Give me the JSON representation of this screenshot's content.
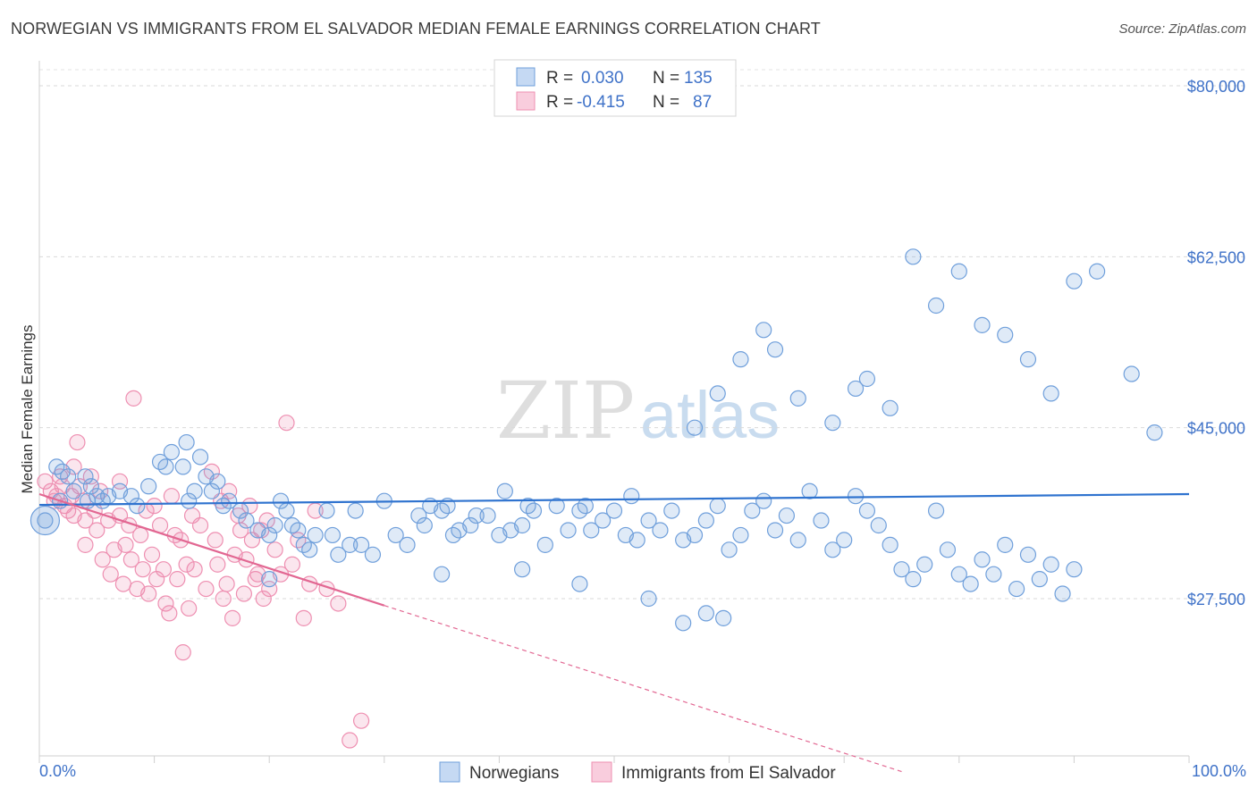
{
  "title": "NORWEGIAN VS IMMIGRANTS FROM EL SALVADOR MEDIAN FEMALE EARNINGS CORRELATION CHART",
  "source": "Source: ZipAtlas.com",
  "watermark": {
    "part1": "ZIP",
    "part2": "atlas"
  },
  "colors": {
    "blue": "#6f9fdb",
    "blue_line": "#2f73cf",
    "pink": "#ee8fb1",
    "pink_line": "#e26792",
    "tick_text": "#3f72c8"
  },
  "legend": {
    "r_label": "R =",
    "n_label": "N =",
    "rows": [
      {
        "r": "0.030",
        "n": "135"
      },
      {
        "r": "-0.415",
        "n": "87"
      }
    ]
  },
  "chart_data": {
    "type": "scatter",
    "title": "NORWEGIAN VS IMMIGRANTS FROM EL SALVADOR MEDIAN FEMALE EARNINGS CORRELATION CHART",
    "xlabel": "",
    "ylabel": "Median Female Earnings",
    "xlim": [
      0,
      100
    ],
    "ylim": [
      10000,
      82000
    ],
    "x_tick_labels": [
      "0.0%",
      "100.0%"
    ],
    "y_ticks": [
      {
        "value": 80000,
        "label": "$80,000"
      },
      {
        "value": 62500,
        "label": "$62,500"
      },
      {
        "value": 45000,
        "label": "$45,000"
      },
      {
        "value": 27500,
        "label": "$27,500"
      }
    ],
    "series": [
      {
        "name": "Norwegians",
        "color": "#6f9fdb",
        "trend": {
          "x": [
            0,
            100
          ],
          "y": [
            37100,
            38200
          ]
        },
        "points": [
          [
            0.5,
            35500
          ],
          [
            1.5,
            41000
          ],
          [
            1.8,
            37500
          ],
          [
            2,
            40500
          ],
          [
            2.5,
            40000
          ],
          [
            3,
            38500
          ],
          [
            4,
            40000
          ],
          [
            4.2,
            37500
          ],
          [
            4.5,
            39000
          ],
          [
            5,
            38000
          ],
          [
            5.5,
            37500
          ],
          [
            6,
            38000
          ],
          [
            7,
            38500
          ],
          [
            8,
            38000
          ],
          [
            8.5,
            37000
          ],
          [
            9.5,
            39000
          ],
          [
            10.5,
            41500
          ],
          [
            11,
            41000
          ],
          [
            11.5,
            42500
          ],
          [
            12.5,
            41000
          ],
          [
            12.8,
            43500
          ],
          [
            13,
            37500
          ],
          [
            13.5,
            38500
          ],
          [
            14,
            42000
          ],
          [
            14.5,
            40000
          ],
          [
            15,
            38500
          ],
          [
            15.5,
            39500
          ],
          [
            16,
            37000
          ],
          [
            16.5,
            37500
          ],
          [
            17.5,
            36500
          ],
          [
            18,
            35500
          ],
          [
            19,
            34500
          ],
          [
            20,
            34000
          ],
          [
            20.5,
            35000
          ],
          [
            21,
            37500
          ],
          [
            21.5,
            36500
          ],
          [
            22,
            35000
          ],
          [
            22.5,
            34500
          ],
          [
            23,
            33000
          ],
          [
            23.5,
            32500
          ],
          [
            24,
            34000
          ],
          [
            25,
            36500
          ],
          [
            25.5,
            34000
          ],
          [
            26,
            32000
          ],
          [
            27,
            33000
          ],
          [
            27.5,
            36500
          ],
          [
            28,
            33000
          ],
          [
            29,
            32000
          ],
          [
            30,
            37500
          ],
          [
            31,
            34000
          ],
          [
            32,
            33000
          ],
          [
            33,
            36000
          ],
          [
            33.5,
            35000
          ],
          [
            34,
            37000
          ],
          [
            35,
            36500
          ],
          [
            35.5,
            37000
          ],
          [
            36,
            34000
          ],
          [
            36.5,
            34500
          ],
          [
            37.5,
            35000
          ],
          [
            38,
            36000
          ],
          [
            39,
            36000
          ],
          [
            40,
            34000
          ],
          [
            40.5,
            38500
          ],
          [
            41,
            34500
          ],
          [
            42,
            35000
          ],
          [
            42.5,
            37000
          ],
          [
            43,
            36500
          ],
          [
            44,
            33000
          ],
          [
            45,
            37000
          ],
          [
            46,
            34500
          ],
          [
            47,
            36500
          ],
          [
            47.5,
            37000
          ],
          [
            48,
            34500
          ],
          [
            49,
            35500
          ],
          [
            50,
            36500
          ],
          [
            51,
            34000
          ],
          [
            51.5,
            38000
          ],
          [
            52,
            33500
          ],
          [
            53,
            35500
          ],
          [
            54,
            34500
          ],
          [
            55,
            36500
          ],
          [
            56,
            33500
          ],
          [
            57,
            34000
          ],
          [
            58,
            35500
          ],
          [
            59,
            37000
          ],
          [
            60,
            32500
          ],
          [
            61,
            34000
          ],
          [
            62,
            36500
          ],
          [
            63,
            37500
          ],
          [
            64,
            34500
          ],
          [
            65,
            36000
          ],
          [
            66,
            33500
          ],
          [
            67,
            38500
          ],
          [
            68,
            35500
          ],
          [
            69,
            32500
          ],
          [
            70,
            33500
          ],
          [
            71,
            38000
          ],
          [
            72,
            36500
          ],
          [
            73,
            35000
          ],
          [
            74,
            33000
          ],
          [
            75,
            30500
          ],
          [
            76,
            29500
          ],
          [
            77,
            31000
          ],
          [
            78,
            36500
          ],
          [
            79,
            32500
          ],
          [
            80,
            30000
          ],
          [
            81,
            29000
          ],
          [
            82,
            31500
          ],
          [
            83,
            30000
          ],
          [
            84,
            33000
          ],
          [
            85,
            28500
          ],
          [
            86,
            32000
          ],
          [
            87,
            29500
          ],
          [
            88,
            31000
          ],
          [
            89,
            28000
          ],
          [
            90,
            30500
          ],
          [
            20,
            29500
          ],
          [
            35,
            30000
          ],
          [
            42,
            30500
          ],
          [
            47,
            29000
          ],
          [
            53,
            27500
          ],
          [
            56,
            25000
          ],
          [
            58,
            26000
          ],
          [
            59.5,
            25500
          ],
          [
            57,
            45000
          ],
          [
            59,
            48500
          ],
          [
            61,
            52000
          ],
          [
            63,
            55000
          ],
          [
            64,
            53000
          ],
          [
            66,
            48000
          ],
          [
            69,
            45500
          ],
          [
            71,
            49000
          ],
          [
            72,
            50000
          ],
          [
            74,
            47000
          ],
          [
            76,
            62500
          ],
          [
            78,
            57500
          ],
          [
            80,
            61000
          ],
          [
            82,
            55500
          ],
          [
            84,
            54500
          ],
          [
            86,
            52000
          ],
          [
            88,
            48500
          ],
          [
            90,
            60000
          ],
          [
            92,
            61000
          ],
          [
            95,
            50500
          ],
          [
            97,
            44500
          ]
        ]
      },
      {
        "name": "Immigrants from El Salvador",
        "color": "#ee8fb1",
        "trend": {
          "x": [
            0,
            30
          ],
          "y": [
            38200,
            26800
          ]
        },
        "trend_extension": {
          "x": [
            30,
            75
          ],
          "y": [
            26800,
            9800
          ]
        },
        "points": [
          [
            0.5,
            39500
          ],
          [
            1,
            38500
          ],
          [
            1.3,
            37500
          ],
          [
            1.5,
            38000
          ],
          [
            1.8,
            40000
          ],
          [
            2,
            39000
          ],
          [
            2.2,
            37000
          ],
          [
            2.5,
            36500
          ],
          [
            2.8,
            38000
          ],
          [
            3,
            41000
          ],
          [
            3,
            36000
          ],
          [
            3.3,
            43500
          ],
          [
            3.5,
            39000
          ],
          [
            3.8,
            37500
          ],
          [
            4,
            35500
          ],
          [
            4,
            33000
          ],
          [
            4.5,
            40000
          ],
          [
            4.8,
            36500
          ],
          [
            5,
            34500
          ],
          [
            5.3,
            38500
          ],
          [
            5.5,
            31500
          ],
          [
            6,
            35500
          ],
          [
            6.2,
            30000
          ],
          [
            6.5,
            32500
          ],
          [
            7,
            39500
          ],
          [
            7,
            36000
          ],
          [
            7.3,
            29000
          ],
          [
            7.5,
            33000
          ],
          [
            7.8,
            35000
          ],
          [
            8,
            31500
          ],
          [
            8.2,
            48000
          ],
          [
            8.5,
            28500
          ],
          [
            8.8,
            34000
          ],
          [
            9,
            30500
          ],
          [
            9.3,
            36500
          ],
          [
            9.5,
            28000
          ],
          [
            9.8,
            32000
          ],
          [
            10,
            37000
          ],
          [
            10.2,
            29500
          ],
          [
            10.5,
            35000
          ],
          [
            10.8,
            30500
          ],
          [
            11,
            27000
          ],
          [
            11.3,
            26000
          ],
          [
            11.5,
            38000
          ],
          [
            11.8,
            34000
          ],
          [
            12,
            29500
          ],
          [
            12.3,
            33500
          ],
          [
            12.5,
            22000
          ],
          [
            12.8,
            31000
          ],
          [
            13,
            26500
          ],
          [
            13.3,
            36000
          ],
          [
            13.5,
            30500
          ],
          [
            14,
            35000
          ],
          [
            14.5,
            28500
          ],
          [
            15,
            40500
          ],
          [
            15.3,
            33500
          ],
          [
            15.5,
            31000
          ],
          [
            15.8,
            37500
          ],
          [
            16,
            27500
          ],
          [
            16.3,
            29000
          ],
          [
            16.5,
            38500
          ],
          [
            16.8,
            25500
          ],
          [
            17,
            32000
          ],
          [
            17.3,
            36000
          ],
          [
            17.5,
            34500
          ],
          [
            17.8,
            28000
          ],
          [
            18,
            31500
          ],
          [
            18.3,
            37000
          ],
          [
            18.5,
            33500
          ],
          [
            18.8,
            29500
          ],
          [
            19,
            30000
          ],
          [
            19.3,
            34500
          ],
          [
            19.5,
            27500
          ],
          [
            19.8,
            35500
          ],
          [
            20,
            28500
          ],
          [
            20.5,
            32500
          ],
          [
            21,
            30000
          ],
          [
            21.5,
            45500
          ],
          [
            22,
            31000
          ],
          [
            22.5,
            33500
          ],
          [
            23,
            25500
          ],
          [
            23.5,
            29000
          ],
          [
            24,
            36500
          ],
          [
            25,
            28500
          ],
          [
            26,
            27000
          ],
          [
            27,
            13000
          ],
          [
            28,
            15000
          ]
        ]
      }
    ]
  },
  "bottom_legend": {
    "items": [
      "Norwegians",
      "Immigrants from El Salvador"
    ]
  }
}
